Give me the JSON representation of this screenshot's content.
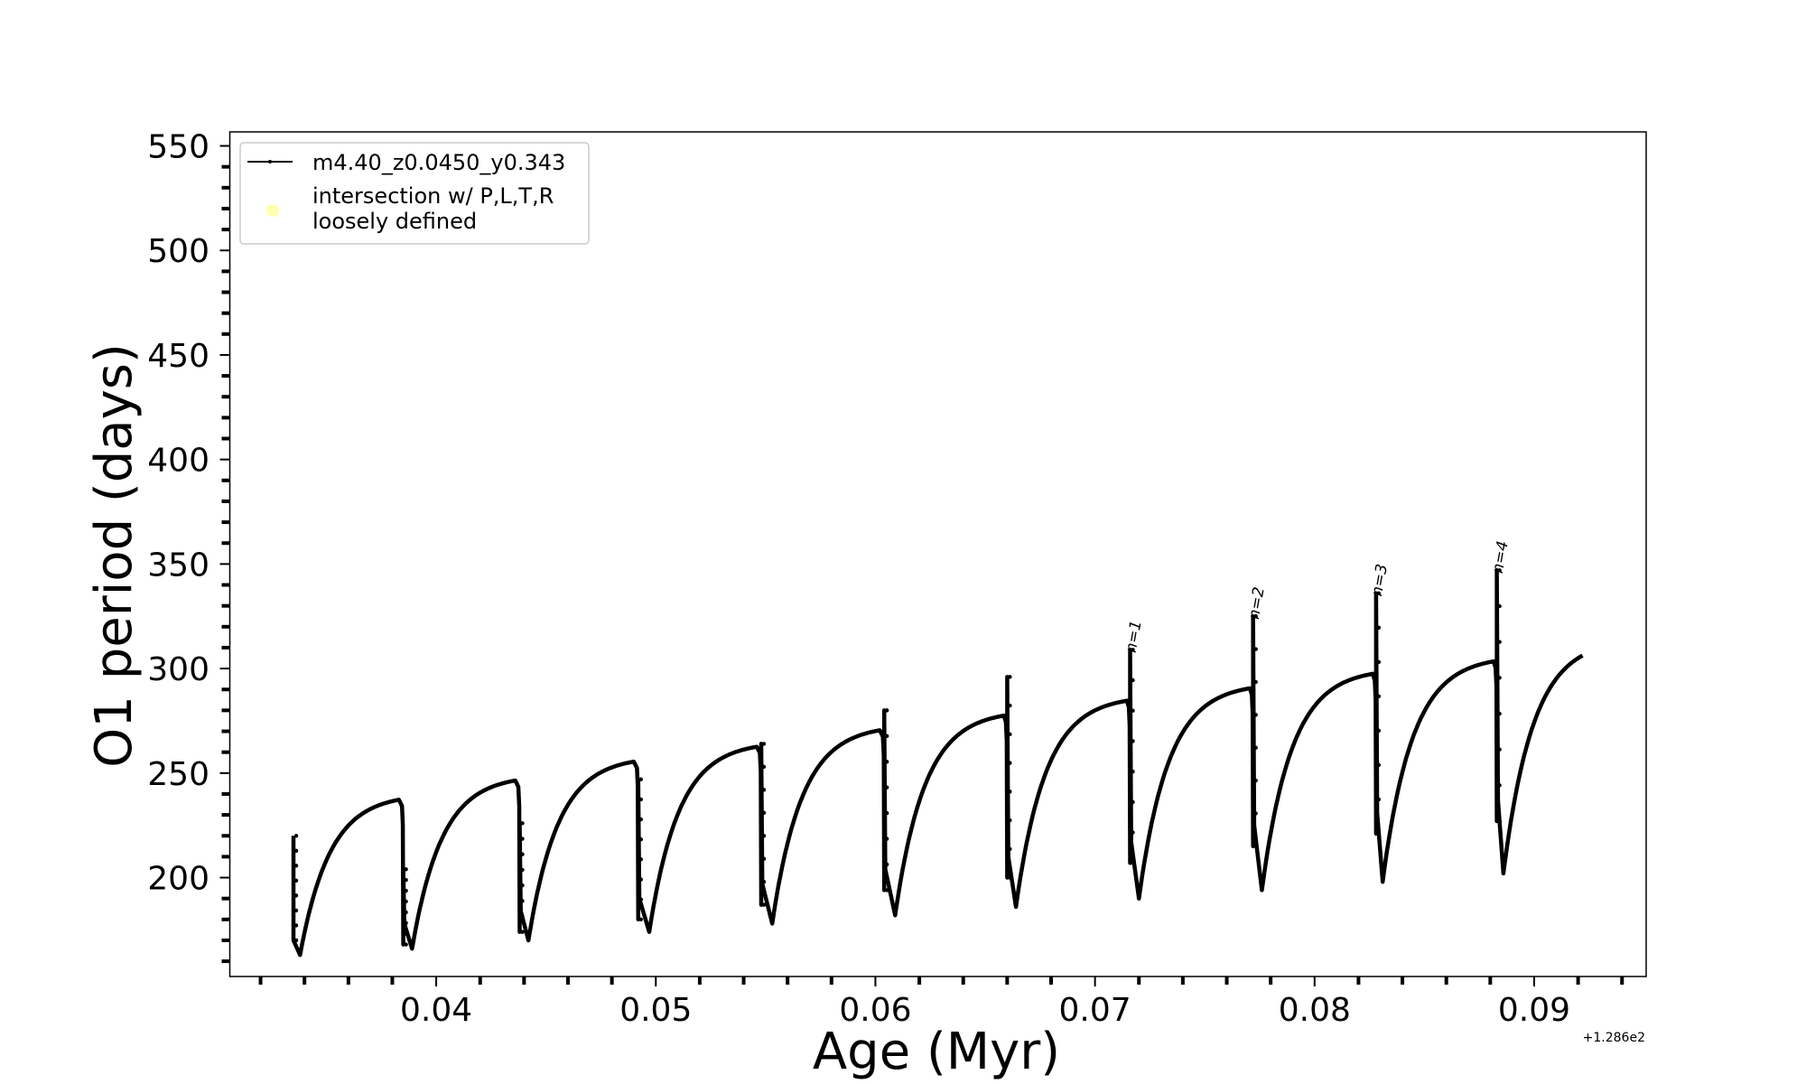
{
  "chart_data": {
    "type": "line",
    "title": "",
    "xlabel": "Age (Myr)",
    "ylabel": "O1 period (days)",
    "x_offset_text": "+1.286e2",
    "xlim": [
      0.0306,
      0.0951
    ],
    "ylim": [
      152.7,
      556.7
    ],
    "xticks": [
      0.04,
      0.05,
      0.06,
      0.07,
      0.08,
      0.09
    ],
    "xtick_labels": [
      "0.04",
      "0.05",
      "0.06",
      "0.07",
      "0.08",
      "0.09"
    ],
    "x_minor_step": 0.002,
    "yticks": [
      200,
      250,
      300,
      350,
      400,
      450,
      500,
      550
    ],
    "ytick_labels": [
      "200",
      "250",
      "300",
      "350",
      "400",
      "450",
      "500",
      "550"
    ],
    "y_minor_step": 10,
    "grid": false,
    "legend": {
      "placement": "top-left",
      "entries": [
        {
          "label": "m4.40_z0.0450_y0.343",
          "marker": "line-with-dots",
          "color": "#000000"
        },
        {
          "label": "intersection w/ P,L,T,R\nloosely defined",
          "label_lines": [
            "intersection w/ P,L,T,R",
            "loosely defined"
          ],
          "marker": "circle",
          "color": "#ffffb0"
        }
      ]
    },
    "series": [
      {
        "name": "m4.40_z0.0450_y0.343",
        "color": "#000000",
        "start": {
          "x": 0.0335,
          "y": 220
        },
        "cycles": [
          {
            "drop_x": 0.0335,
            "spike": 220,
            "low": 170,
            "min_x": 0.0338,
            "min": 163,
            "plateau": 240
          },
          {
            "drop_x": 0.0385,
            "spike": 204,
            "low": 168,
            "min_x": 0.0389,
            "min": 166,
            "plateau": 249
          },
          {
            "drop_x": 0.0438,
            "spike": 226,
            "low": 174,
            "min_x": 0.0442,
            "min": 170,
            "plateau": 258
          },
          {
            "drop_x": 0.0492,
            "spike": 247,
            "low": 180,
            "min_x": 0.0497,
            "min": 174,
            "plateau": 265
          },
          {
            "drop_x": 0.0548,
            "spike": 264,
            "low": 187,
            "min_x": 0.0553,
            "min": 178,
            "plateau": 273
          },
          {
            "drop_x": 0.0604,
            "spike": 280,
            "low": 194,
            "min_x": 0.0609,
            "min": 182,
            "plateau": 280
          },
          {
            "drop_x": 0.066,
            "spike": 296,
            "low": 200,
            "min_x": 0.0664,
            "min": 186,
            "plateau": 287
          },
          {
            "drop_x": 0.0716,
            "spike": 309,
            "low": 207,
            "min_x": 0.072,
            "min": 190,
            "plateau": 293
          },
          {
            "drop_x": 0.0772,
            "spike": 325,
            "low": 215,
            "min_x": 0.0776,
            "min": 194,
            "plateau": 300
          },
          {
            "drop_x": 0.0828,
            "spike": 336,
            "low": 221,
            "min_x": 0.0831,
            "min": 198,
            "plateau": 306
          },
          {
            "drop_x": 0.0883,
            "spike": 347,
            "low": 227,
            "min_x": 0.0886,
            "min": 202,
            "plateau": 314
          }
        ],
        "end": {
          "x": 0.0922,
          "y": 311
        }
      }
    ],
    "annotations": [
      {
        "text": "n=1",
        "x": 0.0716,
        "y": 309
      },
      {
        "text": "n=2",
        "x": 0.0772,
        "y": 325
      },
      {
        "text": "n=3",
        "x": 0.0828,
        "y": 336
      },
      {
        "text": "n=4",
        "x": 0.0883,
        "y": 347
      }
    ]
  }
}
